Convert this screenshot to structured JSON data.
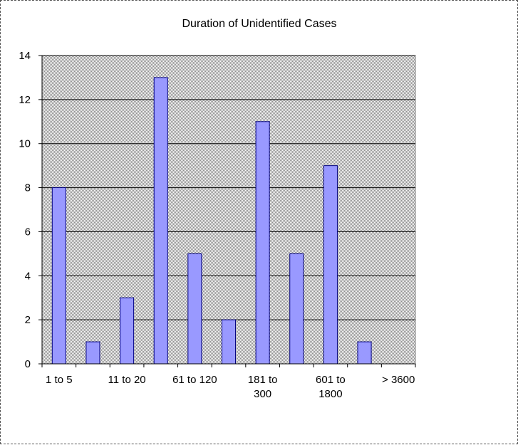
{
  "chart_data": {
    "type": "bar",
    "title": "Duration of Unidentified Cases",
    "xlabel": "",
    "ylabel": "",
    "categories": [
      "1 to 5",
      "",
      "11 to 20",
      "",
      "61 to 120",
      "",
      "181 to 300",
      "",
      "601 to 1800",
      "",
      "> 3600"
    ],
    "category_lines": [
      [
        "1 to 5"
      ],
      [],
      [
        "11 to 20"
      ],
      [],
      [
        "61 to 120"
      ],
      [],
      [
        "181 to",
        "300"
      ],
      [],
      [
        "601 to",
        "1800"
      ],
      [],
      [
        "> 3600"
      ]
    ],
    "values": [
      8,
      1,
      3,
      13,
      5,
      2,
      11,
      5,
      9,
      1,
      0
    ],
    "ylim": [
      0,
      14
    ],
    "yticks": [
      0,
      2,
      4,
      6,
      8,
      10,
      12,
      14
    ],
    "grid": true,
    "legend": "none",
    "colors": {
      "bar_fill": "#9999ff",
      "bar_stroke": "#000080",
      "plot_bg": "#c0c0c0",
      "grid": "#000000"
    }
  }
}
